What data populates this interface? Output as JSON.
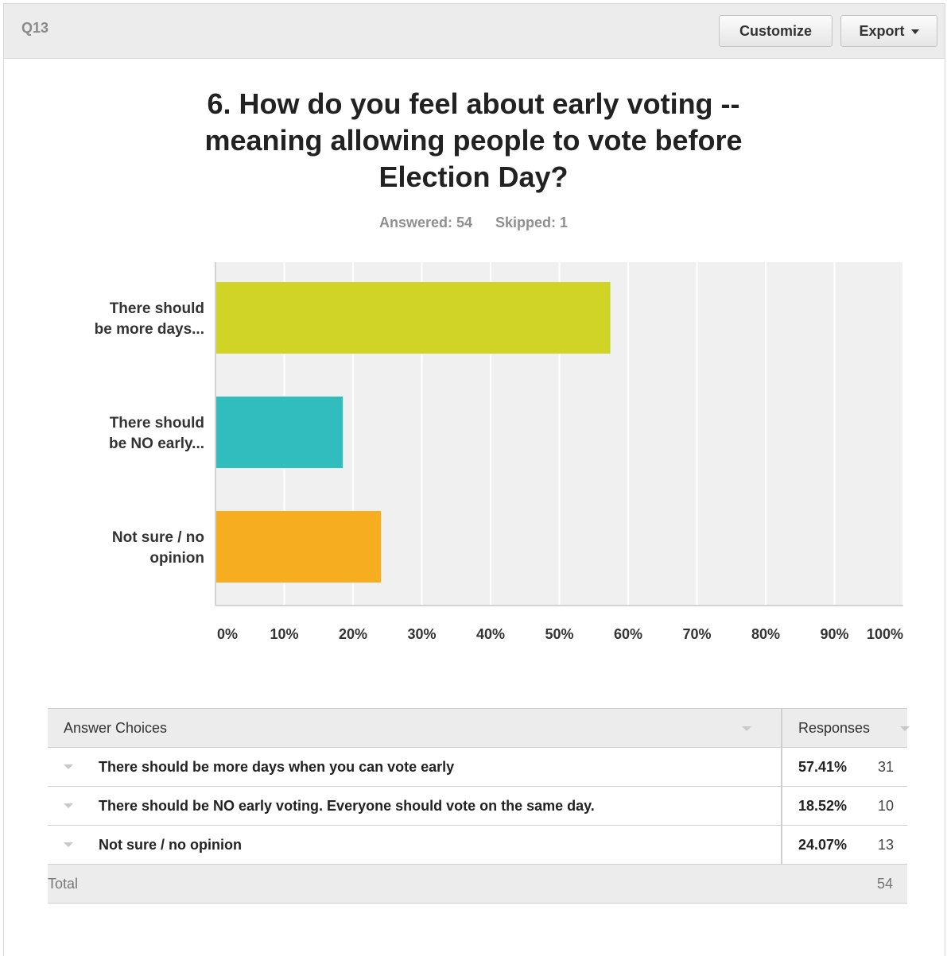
{
  "header": {
    "question_id": "Q13",
    "customize_label": "Customize",
    "export_label": "Export"
  },
  "question": {
    "title_lines": [
      "6. How do you feel about early voting --",
      "meaning allowing people to vote before",
      "Election Day?"
    ],
    "answered": "Answered: 54",
    "skipped": "Skipped: 1"
  },
  "chart_data": {
    "type": "bar",
    "orientation": "horizontal",
    "categories": [
      "There should be more days...",
      "There should be NO early...",
      "Not sure / no opinion"
    ],
    "category_label_lines": [
      [
        "There should",
        "be more days..."
      ],
      [
        "There should",
        "be NO early..."
      ],
      [
        "Not sure / no",
        "opinion"
      ]
    ],
    "values": [
      57.41,
      18.52,
      24.07
    ],
    "colors": [
      "#cfd427",
      "#31bcbd",
      "#f6ae20"
    ],
    "xlim": [
      0,
      100
    ],
    "ticks": [
      "0%",
      "10%",
      "20%",
      "30%",
      "40%",
      "50%",
      "60%",
      "70%",
      "80%",
      "90%",
      "100%"
    ],
    "grid": true,
    "title": "",
    "xlabel": "",
    "ylabel": ""
  },
  "table": {
    "header_choice": "Answer Choices",
    "header_responses": "Responses",
    "rows": [
      {
        "choice": "There should be more days when you can vote early",
        "percent": "57.41%",
        "count": "31"
      },
      {
        "choice": "There should be NO early voting. Everyone should vote on the same day.",
        "percent": "18.52%",
        "count": "10"
      },
      {
        "choice": "Not sure / no opinion",
        "percent": "24.07%",
        "count": "13"
      }
    ],
    "total_label": "Total",
    "total_count": "54"
  }
}
